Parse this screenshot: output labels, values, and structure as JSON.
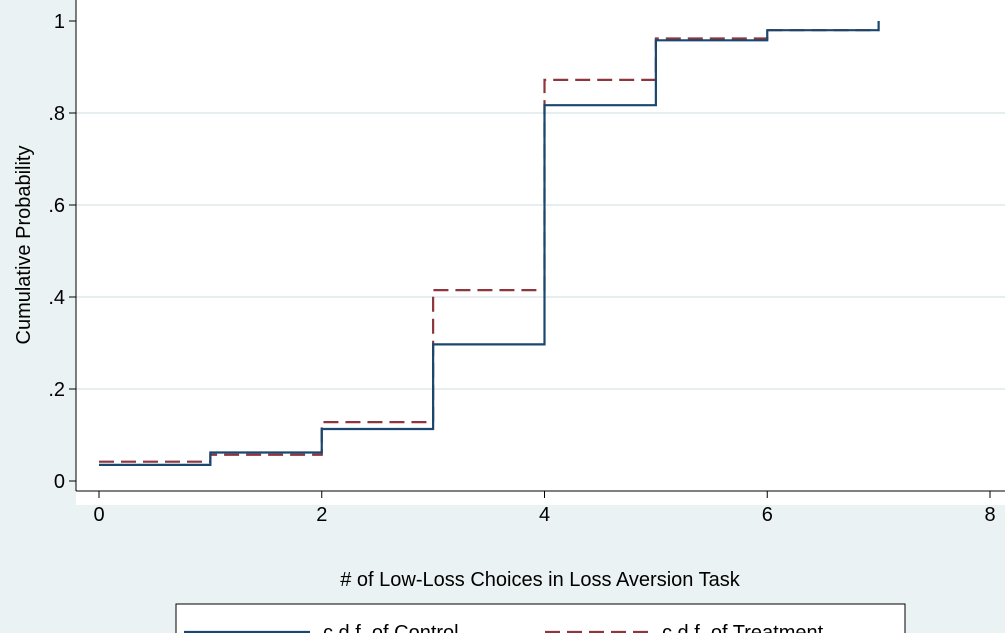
{
  "chart_data": {
    "type": "line",
    "step": true,
    "xlabel": "# of Low-Loss Choices in Loss Aversion Task",
    "ylabel": "Cumulative Probability",
    "xlim": [
      0,
      8
    ],
    "ylim": [
      0,
      1
    ],
    "x_ticks": [
      0,
      2,
      4,
      6,
      8
    ],
    "x_tick_labels": [
      "0",
      "2",
      "4",
      "6",
      "8"
    ],
    "y_ticks": [
      0,
      0.2,
      0.4,
      0.6,
      0.8,
      1
    ],
    "y_tick_labels": [
      "0",
      ".2",
      ".4",
      ".6",
      ".8",
      "1"
    ],
    "grid": "horizontal",
    "legend_position": "bottom",
    "colors": {
      "background": "#eaf2f3",
      "plot_area": "#ffffff",
      "grid": "#e6eeef"
    },
    "series": [
      {
        "name": "c.d.f. of  Control",
        "color": "#1a476f",
        "dash": "solid",
        "x": [
          0,
          1,
          2,
          3,
          4,
          5,
          6,
          7
        ],
        "y": [
          0.035,
          0.062,
          0.113,
          0.297,
          0.817,
          0.958,
          0.98,
          1.0
        ]
      },
      {
        "name": "c.d.f. of  Treatment",
        "color": "#90353b",
        "dash": "dashed",
        "x": [
          0,
          1,
          2,
          3,
          4,
          5,
          6,
          7
        ],
        "y": [
          0.042,
          0.057,
          0.128,
          0.415,
          0.872,
          0.962,
          0.98,
          0.98
        ]
      }
    ]
  }
}
